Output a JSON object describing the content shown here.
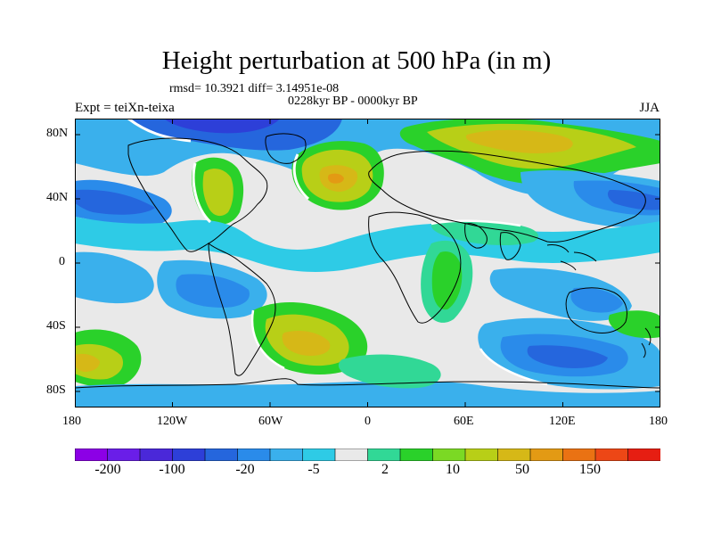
{
  "title": "Height perturbation at 500 hPa (in m)",
  "stats": "rmsd= 10.3921 diff= 3.14951e-08",
  "period": "0228kyr BP - 0000kyr BP",
  "experiment": "Expt = teiXn-teixa",
  "season": "JJA",
  "map": {
    "projection": "cylindrical equidistant",
    "lat_labels": [
      "80N",
      "40N",
      "0",
      "40S",
      "80S"
    ],
    "lon_labels": [
      "180",
      "120W",
      "60W",
      "0",
      "60E",
      "120E",
      "180"
    ]
  },
  "colorbar": {
    "colors": [
      "#8c00e6",
      "#6a1ee8",
      "#4a28d9",
      "#2d3fd8",
      "#2566dd",
      "#2a8bea",
      "#3ab0ec",
      "#2ecbe6",
      "#e9e9e9",
      "#31d896",
      "#2ad12a",
      "#7bd924",
      "#b8cf17",
      "#d6b817",
      "#e39a14",
      "#ea7213",
      "#ed4716",
      "#e61e12"
    ],
    "tick_labels": [
      "-200",
      "-100",
      "-20",
      "-5",
      "2",
      "10",
      "50",
      "150"
    ]
  },
  "colors": {
    "no_change": "#e9e9e9",
    "coastline": "#000000",
    "contour_white": "#ffffff"
  }
}
